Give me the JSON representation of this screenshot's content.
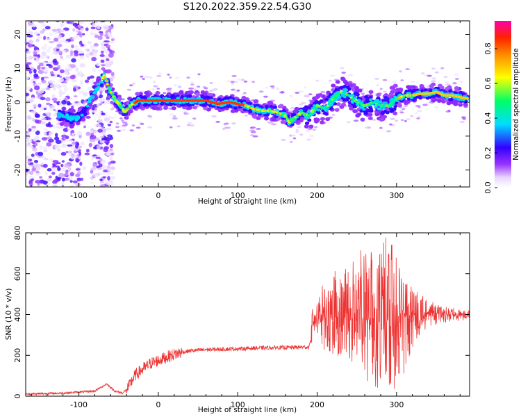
{
  "title": "S120.2022.359.22.54.G30",
  "chart_data": [
    {
      "type": "heatmap",
      "xlabel": "Height of straight line (km)",
      "ylabel": "Frequency (Hz)",
      "xlim": [
        -167,
        392
      ],
      "ylim": [
        -25,
        24
      ],
      "xticks": [
        -100,
        0,
        100,
        200,
        300
      ],
      "yticks": [
        -20,
        -10,
        0,
        10,
        20
      ],
      "colorbar": {
        "label": "Normalized spectral amplitude",
        "range": [
          0,
          0.96
        ],
        "ticks": [
          "0.0",
          "0.2",
          "0.4",
          "0.6",
          "0.8"
        ],
        "tick_values": [
          0.0,
          0.2,
          0.4,
          0.6,
          0.8
        ],
        "colormap": "rainbow (white-purple-blue-cyan-green-yellow-orange-red-magenta)"
      },
      "ridge": {
        "x": [
          -120,
          -105,
          -95,
          -85,
          -75,
          -68,
          -62,
          -55,
          -48,
          -42,
          -35,
          -25,
          0,
          30,
          60,
          75,
          90,
          100,
          110,
          120,
          130,
          140,
          150,
          160,
          165,
          170,
          180,
          190,
          200,
          210,
          220,
          230,
          240,
          250,
          260,
          270,
          280,
          290,
          300,
          310,
          320,
          330,
          340,
          350,
          360,
          370,
          380,
          390
        ],
        "y": [
          -4,
          -5,
          -4,
          1,
          5,
          8,
          4,
          1,
          -1,
          -3,
          -1,
          0.5,
          0.5,
          0.5,
          0.5,
          -0.5,
          0,
          -0.5,
          -1,
          -2,
          -2.5,
          -2.5,
          -3,
          -4,
          -6,
          -5,
          -3,
          -4,
          -1,
          -2,
          1,
          3,
          2,
          0,
          -1,
          0,
          -1,
          -1,
          1,
          2,
          2,
          2.5,
          2.5,
          3,
          2,
          2,
          1.5,
          1
        ]
      }
    },
    {
      "type": "line",
      "xlabel": "Height of straight line (km)",
      "ylabel": "SNR (10 * v/v)",
      "xlim": [
        -167,
        392
      ],
      "ylim": [
        0,
        800
      ],
      "xticks": [
        -100,
        0,
        100,
        200,
        300
      ],
      "yticks": [
        0,
        200,
        400,
        600,
        800
      ],
      "color": "#ee3333",
      "series": [
        {
          "x": [
            -167,
            -120,
            -80,
            -65,
            -55,
            -45,
            -38,
            -30,
            -20,
            -10,
            0,
            10,
            20,
            30,
            40,
            60,
            80,
            100,
            120,
            140,
            160,
            180,
            190,
            195,
            200,
            220,
            240,
            260,
            280,
            300,
            320,
            340,
            360,
            380,
            392
          ],
          "y": [
            10,
            15,
            25,
            60,
            25,
            15,
            40,
            100,
            130,
            160,
            175,
            190,
            205,
            215,
            222,
            228,
            230,
            232,
            235,
            237,
            238,
            240,
            240,
            355,
            390,
            390,
            385,
            380,
            360,
            395,
            405,
            410,
            405,
            395,
            390
          ]
        }
      ],
      "envelope": {
        "x": [
          195,
          210,
          230,
          250,
          265,
          280,
          295,
          310,
          325,
          340,
          360,
          392
        ],
        "min": [
          260,
          220,
          180,
          150,
          60,
          30,
          20,
          100,
          280,
          330,
          360,
          370
        ],
        "max": [
          460,
          570,
          640,
          690,
          780,
          800,
          760,
          600,
          520,
          470,
          440,
          420
        ]
      }
    }
  ]
}
